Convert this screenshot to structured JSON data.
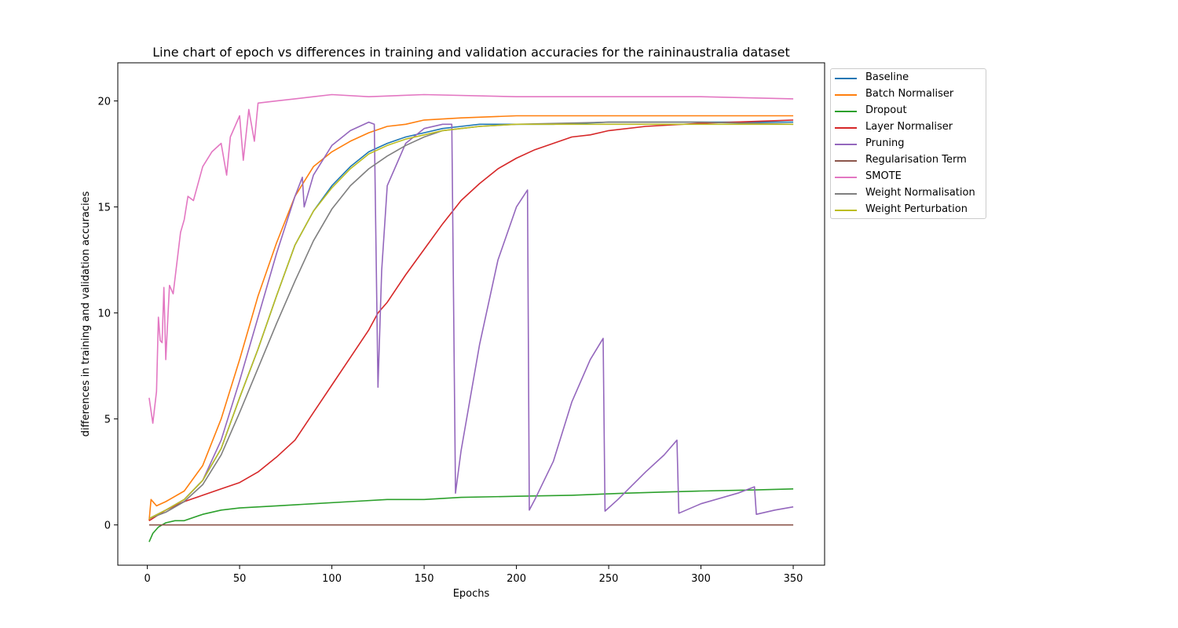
{
  "chart_data": {
    "type": "line",
    "title": "Line chart of epoch vs differences in training and validation accuracies for the raininaustralia dataset",
    "xlabel": "Epochs",
    "ylabel": "differences in training and validation accuracies",
    "xlim": [
      -16,
      367
    ],
    "ylim": [
      -1.9,
      21.8
    ],
    "xticks": [
      0,
      50,
      100,
      150,
      200,
      250,
      300,
      350
    ],
    "yticks": [
      0,
      5,
      10,
      15,
      20
    ],
    "grid": false,
    "legend_position": "upper-right-outside",
    "series": [
      {
        "name": "Baseline",
        "color": "#1f77b4",
        "points": [
          [
            1,
            0.3
          ],
          [
            10,
            0.7
          ],
          [
            20,
            1.2
          ],
          [
            30,
            2.1
          ],
          [
            40,
            3.6
          ],
          [
            50,
            6.0
          ],
          [
            60,
            8.3
          ],
          [
            70,
            10.8
          ],
          [
            80,
            13.2
          ],
          [
            90,
            14.8
          ],
          [
            100,
            16.0
          ],
          [
            110,
            16.9
          ],
          [
            120,
            17.6
          ],
          [
            130,
            18.0
          ],
          [
            140,
            18.3
          ],
          [
            150,
            18.5
          ],
          [
            160,
            18.7
          ],
          [
            170,
            18.8
          ],
          [
            180,
            18.9
          ],
          [
            200,
            18.9
          ],
          [
            220,
            18.9
          ],
          [
            250,
            19.0
          ],
          [
            280,
            19.0
          ],
          [
            300,
            19.0
          ],
          [
            330,
            19.0
          ],
          [
            350,
            19.0
          ]
        ]
      },
      {
        "name": "Batch Normaliser",
        "color": "#ff7f0e",
        "points": [
          [
            1,
            0.2
          ],
          [
            2,
            1.2
          ],
          [
            5,
            0.9
          ],
          [
            10,
            1.1
          ],
          [
            20,
            1.6
          ],
          [
            30,
            2.8
          ],
          [
            40,
            5.0
          ],
          [
            50,
            7.8
          ],
          [
            60,
            10.8
          ],
          [
            70,
            13.3
          ],
          [
            80,
            15.5
          ],
          [
            90,
            16.9
          ],
          [
            100,
            17.6
          ],
          [
            110,
            18.1
          ],
          [
            120,
            18.5
          ],
          [
            130,
            18.8
          ],
          [
            140,
            18.9
          ],
          [
            150,
            19.1
          ],
          [
            170,
            19.2
          ],
          [
            200,
            19.3
          ],
          [
            250,
            19.3
          ],
          [
            300,
            19.3
          ],
          [
            350,
            19.3
          ]
        ]
      },
      {
        "name": "Dropout",
        "color": "#2ca02c",
        "points": [
          [
            1,
            -0.8
          ],
          [
            3,
            -0.4
          ],
          [
            6,
            -0.1
          ],
          [
            10,
            0.1
          ],
          [
            15,
            0.2
          ],
          [
            20,
            0.2
          ],
          [
            30,
            0.5
          ],
          [
            40,
            0.7
          ],
          [
            50,
            0.8
          ],
          [
            70,
            0.9
          ],
          [
            90,
            1.0
          ],
          [
            110,
            1.1
          ],
          [
            130,
            1.2
          ],
          [
            150,
            1.2
          ],
          [
            170,
            1.3
          ],
          [
            200,
            1.35
          ],
          [
            230,
            1.4
          ],
          [
            260,
            1.5
          ],
          [
            280,
            1.55
          ],
          [
            300,
            1.6
          ],
          [
            330,
            1.65
          ],
          [
            350,
            1.7
          ]
        ]
      },
      {
        "name": "Layer Normaliser",
        "color": "#d62728",
        "points": [
          [
            1,
            0.2
          ],
          [
            10,
            0.7
          ],
          [
            20,
            1.1
          ],
          [
            30,
            1.4
          ],
          [
            40,
            1.7
          ],
          [
            50,
            2.0
          ],
          [
            60,
            2.5
          ],
          [
            70,
            3.2
          ],
          [
            80,
            4.0
          ],
          [
            90,
            5.3
          ],
          [
            100,
            6.6
          ],
          [
            110,
            7.9
          ],
          [
            120,
            9.2
          ],
          [
            125,
            10.0
          ],
          [
            130,
            10.5
          ],
          [
            140,
            11.8
          ],
          [
            150,
            13.0
          ],
          [
            160,
            14.2
          ],
          [
            170,
            15.3
          ],
          [
            180,
            16.1
          ],
          [
            190,
            16.8
          ],
          [
            200,
            17.3
          ],
          [
            210,
            17.7
          ],
          [
            220,
            18.0
          ],
          [
            230,
            18.3
          ],
          [
            240,
            18.4
          ],
          [
            250,
            18.6
          ],
          [
            270,
            18.8
          ],
          [
            300,
            18.95
          ],
          [
            350,
            19.1
          ]
        ]
      },
      {
        "name": "Pruning",
        "color": "#9467bd",
        "points": [
          [
            1,
            0.3
          ],
          [
            10,
            0.7
          ],
          [
            20,
            1.2
          ],
          [
            30,
            2.1
          ],
          [
            40,
            4.0
          ],
          [
            50,
            6.8
          ],
          [
            60,
            9.8
          ],
          [
            70,
            12.8
          ],
          [
            80,
            15.5
          ],
          [
            84,
            16.4
          ],
          [
            85,
            15.0
          ],
          [
            90,
            16.5
          ],
          [
            100,
            17.9
          ],
          [
            110,
            18.6
          ],
          [
            120,
            19.0
          ],
          [
            123,
            18.9
          ],
          [
            125,
            6.5
          ],
          [
            127,
            12.0
          ],
          [
            130,
            16.0
          ],
          [
            140,
            18.0
          ],
          [
            150,
            18.7
          ],
          [
            160,
            18.9
          ],
          [
            165,
            18.9
          ],
          [
            166,
            10.0
          ],
          [
            167,
            1.5
          ],
          [
            170,
            3.5
          ],
          [
            180,
            8.5
          ],
          [
            190,
            12.5
          ],
          [
            200,
            15.0
          ],
          [
            206,
            15.8
          ],
          [
            207,
            0.7
          ],
          [
            210,
            1.2
          ],
          [
            220,
            3.0
          ],
          [
            230,
            5.8
          ],
          [
            240,
            7.8
          ],
          [
            247,
            8.8
          ],
          [
            248,
            0.65
          ],
          [
            255,
            1.2
          ],
          [
            270,
            2.5
          ],
          [
            280,
            3.3
          ],
          [
            287,
            4.0
          ],
          [
            288,
            0.55
          ],
          [
            300,
            1.0
          ],
          [
            320,
            1.5
          ],
          [
            329,
            1.8
          ],
          [
            330,
            0.5
          ],
          [
            340,
            0.7
          ],
          [
            350,
            0.85
          ]
        ]
      },
      {
        "name": "Regularisation Term",
        "color": "#8c564b",
        "points": [
          [
            1,
            0.0
          ],
          [
            350,
            0.0
          ]
        ]
      },
      {
        "name": "SMOTE",
        "color": "#e377c2",
        "points": [
          [
            1,
            6.0
          ],
          [
            3,
            4.8
          ],
          [
            5,
            6.3
          ],
          [
            6,
            9.8
          ],
          [
            7,
            8.7
          ],
          [
            8,
            8.6
          ],
          [
            9,
            11.2
          ],
          [
            10,
            7.8
          ],
          [
            12,
            11.3
          ],
          [
            14,
            10.9
          ],
          [
            18,
            13.8
          ],
          [
            20,
            14.4
          ],
          [
            22,
            15.5
          ],
          [
            25,
            15.3
          ],
          [
            30,
            16.9
          ],
          [
            35,
            17.6
          ],
          [
            40,
            18.0
          ],
          [
            43,
            16.5
          ],
          [
            45,
            18.3
          ],
          [
            50,
            19.3
          ],
          [
            52,
            17.2
          ],
          [
            55,
            19.6
          ],
          [
            58,
            18.1
          ],
          [
            60,
            19.9
          ],
          [
            70,
            20.0
          ],
          [
            80,
            20.1
          ],
          [
            90,
            20.2
          ],
          [
            100,
            20.3
          ],
          [
            120,
            20.2
          ],
          [
            150,
            20.3
          ],
          [
            200,
            20.2
          ],
          [
            250,
            20.2
          ],
          [
            300,
            20.2
          ],
          [
            350,
            20.1
          ]
        ]
      },
      {
        "name": "Weight Normalisation",
        "color": "#7f7f7f",
        "points": [
          [
            1,
            0.3
          ],
          [
            10,
            0.6
          ],
          [
            20,
            1.1
          ],
          [
            30,
            1.9
          ],
          [
            40,
            3.3
          ],
          [
            50,
            5.3
          ],
          [
            60,
            7.4
          ],
          [
            70,
            9.5
          ],
          [
            80,
            11.5
          ],
          [
            90,
            13.4
          ],
          [
            100,
            14.9
          ],
          [
            110,
            16.0
          ],
          [
            120,
            16.8
          ],
          [
            130,
            17.4
          ],
          [
            140,
            17.9
          ],
          [
            150,
            18.3
          ],
          [
            160,
            18.6
          ],
          [
            170,
            18.7
          ],
          [
            180,
            18.8
          ],
          [
            200,
            18.9
          ],
          [
            250,
            19.0
          ],
          [
            300,
            19.0
          ],
          [
            350,
            18.9
          ]
        ]
      },
      {
        "name": "Weight Perturbation",
        "color": "#bcbd22",
        "points": [
          [
            1,
            0.3
          ],
          [
            10,
            0.7
          ],
          [
            20,
            1.2
          ],
          [
            30,
            2.1
          ],
          [
            40,
            3.6
          ],
          [
            50,
            6.0
          ],
          [
            60,
            8.3
          ],
          [
            70,
            10.8
          ],
          [
            80,
            13.2
          ],
          [
            90,
            14.8
          ],
          [
            100,
            15.9
          ],
          [
            110,
            16.8
          ],
          [
            120,
            17.5
          ],
          [
            130,
            17.9
          ],
          [
            140,
            18.2
          ],
          [
            150,
            18.4
          ],
          [
            160,
            18.6
          ],
          [
            170,
            18.7
          ],
          [
            180,
            18.8
          ],
          [
            200,
            18.9
          ],
          [
            250,
            18.9
          ],
          [
            300,
            18.9
          ],
          [
            350,
            18.9
          ]
        ]
      }
    ]
  }
}
